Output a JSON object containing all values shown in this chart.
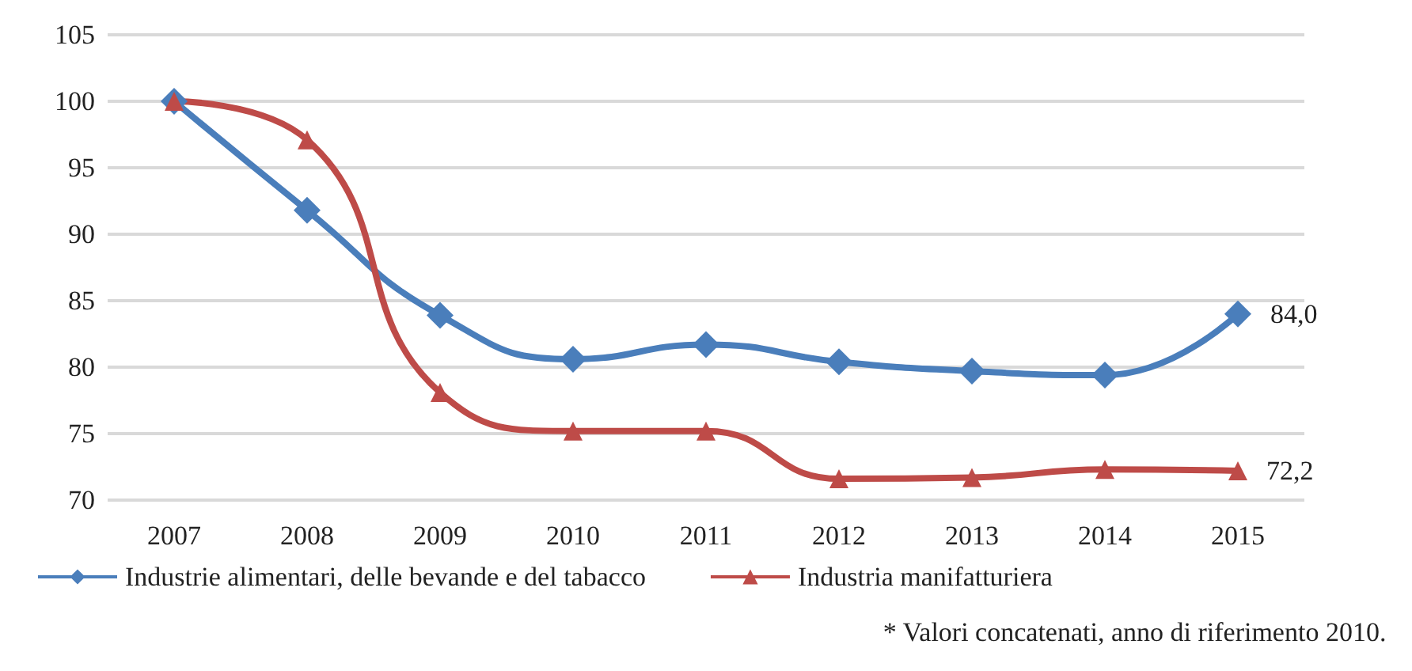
{
  "chart_data": {
    "type": "line",
    "categories": [
      "2007",
      "2008",
      "2009",
      "2010",
      "2011",
      "2012",
      "2013",
      "2014",
      "2015"
    ],
    "series": [
      {
        "name": "Industrie alimentari, delle bevande e del tabacco",
        "color": "#4a7ebb",
        "marker": "diamond",
        "values": [
          100,
          91.8,
          83.9,
          80.6,
          81.7,
          80.4,
          79.7,
          79.4,
          84.0
        ],
        "value_labels": [
          null,
          null,
          null,
          null,
          null,
          null,
          null,
          null,
          "84,0"
        ]
      },
      {
        "name": "Industria manifatturiera",
        "color": "#be4b48",
        "marker": "triangle",
        "values": [
          100,
          97.1,
          78.1,
          75.2,
          75.2,
          71.6,
          71.7,
          72.3,
          72.2
        ],
        "value_labels": [
          null,
          null,
          null,
          null,
          null,
          null,
          null,
          null,
          "72,2"
        ]
      }
    ],
    "ylim": [
      70,
      105
    ],
    "yticks": [
      70,
      75,
      80,
      85,
      90,
      95,
      100,
      105
    ],
    "grid": "y",
    "legend": "bottom",
    "annotations": [
      "* Valori concatenati, anno di riferimento 2010."
    ]
  }
}
